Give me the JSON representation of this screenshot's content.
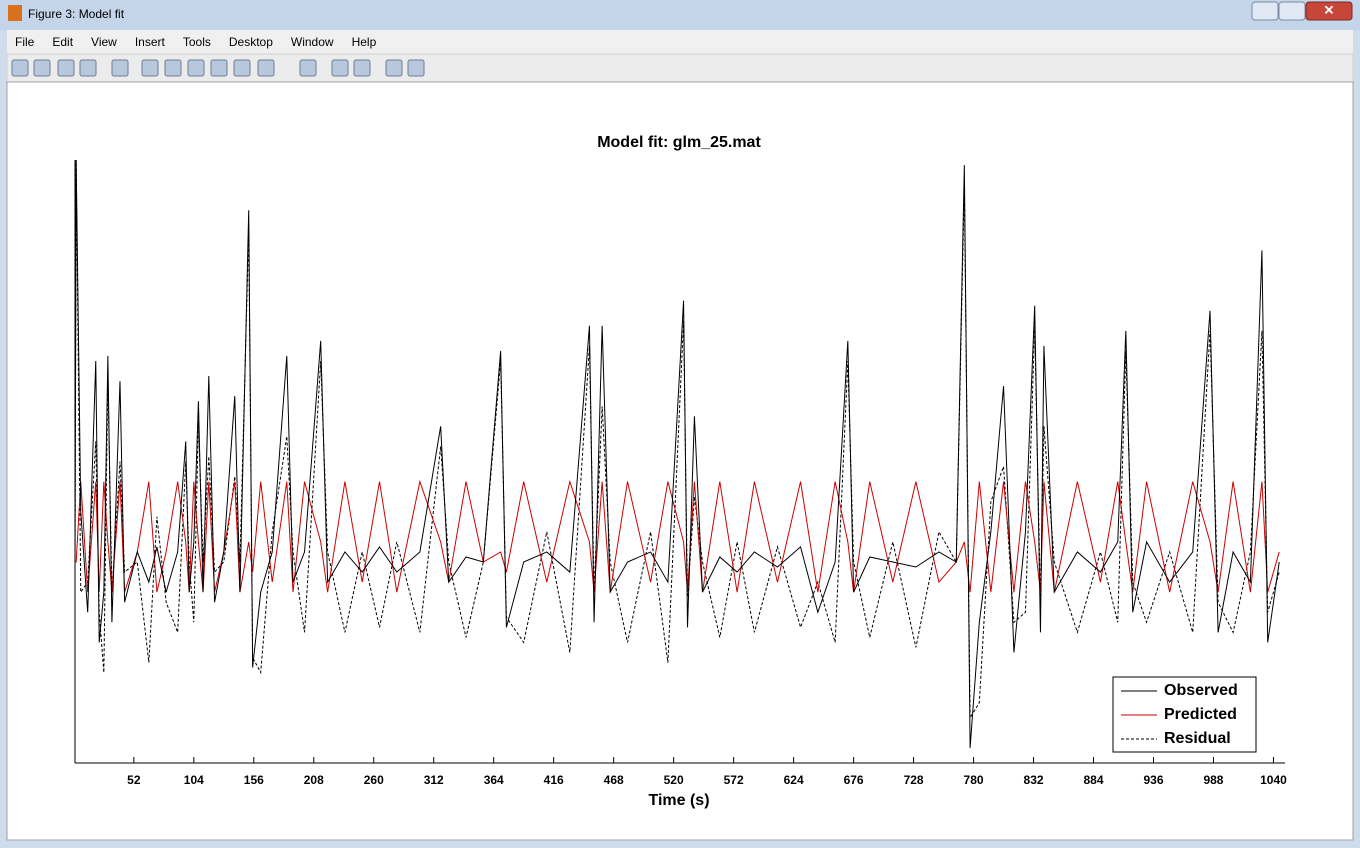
{
  "window": {
    "title": "Figure 3: Model fit",
    "menu": [
      "File",
      "Edit",
      "View",
      "Insert",
      "Tools",
      "Desktop",
      "Window",
      "Help"
    ]
  },
  "chart_data": {
    "type": "line",
    "title": "Model fit: glm_25.mat",
    "x_label": "Time (s)",
    "x": [
      1,
      2,
      6,
      12,
      19,
      22,
      26,
      29.5,
      33,
      40,
      44,
      55,
      65,
      72,
      80,
      90,
      97,
      100,
      104,
      108,
      112,
      117,
      122,
      130,
      139.5,
      144,
      151.6,
      155,
      162,
      172,
      184.6,
      190,
      200,
      214,
      220,
      235,
      250,
      265,
      280,
      300,
      318,
      325,
      340,
      355,
      370,
      375,
      390,
      410,
      430,
      447,
      451,
      458,
      465,
      480,
      500,
      515,
      528.6,
      532,
      538,
      545,
      560,
      575,
      590,
      610,
      630,
      645,
      660,
      671,
      676,
      690,
      710,
      730,
      750,
      765,
      772,
      777,
      785,
      795,
      806,
      815,
      825,
      833,
      838,
      841,
      850,
      870,
      890,
      905,
      912,
      918,
      930,
      950,
      970,
      985,
      992,
      1005,
      1020,
      1030,
      1035,
      1045
    ],
    "series": [
      {
        "name": "Observed",
        "color": "#000000",
        "dash": "solid",
        "values": [
          0,
          4.0,
          0.5,
          -0.5,
          2.0,
          -0.8,
          -0.3,
          2.05,
          -0.6,
          1.8,
          -0.4,
          0.1,
          -0.2,
          0.15,
          -0.3,
          0.1,
          1.2,
          -0.3,
          0.2,
          1.6,
          -0.3,
          1.85,
          -0.4,
          0.1,
          1.65,
          -0.3,
          3.5,
          -1.05,
          -0.3,
          0.1,
          2.05,
          -0.2,
          0.1,
          2.2,
          -0.2,
          0.1,
          -0.1,
          0.15,
          -0.1,
          0.1,
          1.35,
          -0.2,
          0.05,
          0,
          2.1,
          -0.65,
          0,
          0.1,
          -0.1,
          2.35,
          -0.6,
          2.35,
          -0.3,
          0,
          0.1,
          -0.2,
          2.6,
          -0.65,
          1.45,
          -0.3,
          0.05,
          -0.1,
          0.1,
          -0.05,
          0.15,
          -0.5,
          0,
          2.2,
          -0.3,
          0.05,
          0,
          -0.05,
          0.1,
          0,
          3.95,
          -1.85,
          -0.6,
          0.3,
          1.75,
          -0.9,
          0.3,
          2.55,
          -0.7,
          2.15,
          -0.3,
          0.1,
          -0.1,
          0.2,
          2.3,
          -0.5,
          0.2,
          -0.2,
          0.1,
          2.5,
          -0.7,
          0.1,
          -0.2,
          3.1,
          -0.8,
          0
        ]
      },
      {
        "name": "Predicted",
        "color": "#cc0000",
        "dash": "solid",
        "values": [
          0,
          0,
          0.8,
          -0.3,
          0.8,
          -0.3,
          0.8,
          0.2,
          -0.3,
          0.8,
          -0.3,
          0.1,
          0.8,
          -0.3,
          0.1,
          0.8,
          0.2,
          -0.3,
          0.8,
          0.2,
          -0.3,
          0.8,
          -0.3,
          0.1,
          0.8,
          -0.3,
          0.2,
          -0.1,
          0.8,
          -0.2,
          0.8,
          -0.3,
          0.8,
          0.2,
          -0.3,
          0.8,
          -0.2,
          0.8,
          -0.3,
          0.8,
          0.2,
          -0.2,
          0.8,
          0,
          0.1,
          -0.1,
          0.8,
          -0.2,
          0.8,
          0.2,
          -0.3,
          0.8,
          -0.3,
          0.8,
          -0.2,
          0.8,
          0.2,
          -0.3,
          0.8,
          -0.3,
          0.8,
          -0.3,
          0.8,
          -0.2,
          0.8,
          -0.3,
          0.8,
          0.2,
          -0.3,
          0.8,
          -0.2,
          0.8,
          -0.2,
          0,
          0.2,
          -0.3,
          0.8,
          -0.3,
          0.8,
          -0.3,
          0.8,
          0.2,
          -0.3,
          0.8,
          -0.3,
          0.8,
          -0.2,
          0.8,
          0.2,
          -0.3,
          0.8,
          -0.3,
          0.8,
          0.2,
          -0.3,
          0.8,
          -0.3,
          0.8,
          -0.3,
          0.1
        ]
      },
      {
        "name": "Residual",
        "color": "#000000",
        "dash": "dashed",
        "values": [
          0,
          4.0,
          -0.3,
          -0.2,
          1.2,
          -0.5,
          -1.1,
          1.85,
          -0.3,
          1.0,
          -0.1,
          0,
          -1.0,
          0.45,
          -0.4,
          -0.7,
          1.0,
          0,
          -0.6,
          1.4,
          0,
          1.05,
          -0.1,
          0,
          0.85,
          0,
          3.3,
          -0.95,
          -1.1,
          0.3,
          1.25,
          0.1,
          -0.7,
          2.0,
          0.1,
          -0.7,
          0.1,
          -0.65,
          0.2,
          -0.7,
          1.15,
          0,
          -0.75,
          0,
          2.0,
          -0.55,
          -0.8,
          0.3,
          -0.9,
          2.15,
          -0.3,
          1.55,
          0,
          -0.8,
          0.3,
          -1.0,
          2.4,
          -0.35,
          0.65,
          0,
          -0.75,
          0.2,
          -0.7,
          0.15,
          -0.65,
          -0.2,
          -0.8,
          2.0,
          0,
          -0.75,
          0.2,
          -0.85,
          0.3,
          0,
          3.75,
          -1.55,
          -1.4,
          0.6,
          0.95,
          -0.6,
          -0.5,
          2.35,
          -0.4,
          1.35,
          0,
          -0.7,
          0.1,
          -0.6,
          2.1,
          -0.2,
          -0.6,
          0.1,
          -0.7,
          2.3,
          -0.4,
          -0.7,
          0.1,
          2.3,
          -0.5,
          -0.1
        ]
      }
    ],
    "xlim": [
      1,
      1050
    ],
    "xticks": [
      52,
      104,
      156,
      208,
      260,
      312,
      364,
      416,
      468,
      520,
      572,
      624,
      676,
      728,
      780,
      832,
      884,
      936,
      988,
      1040
    ],
    "ylim": [
      -2,
      4
    ],
    "legend": "lower right"
  }
}
